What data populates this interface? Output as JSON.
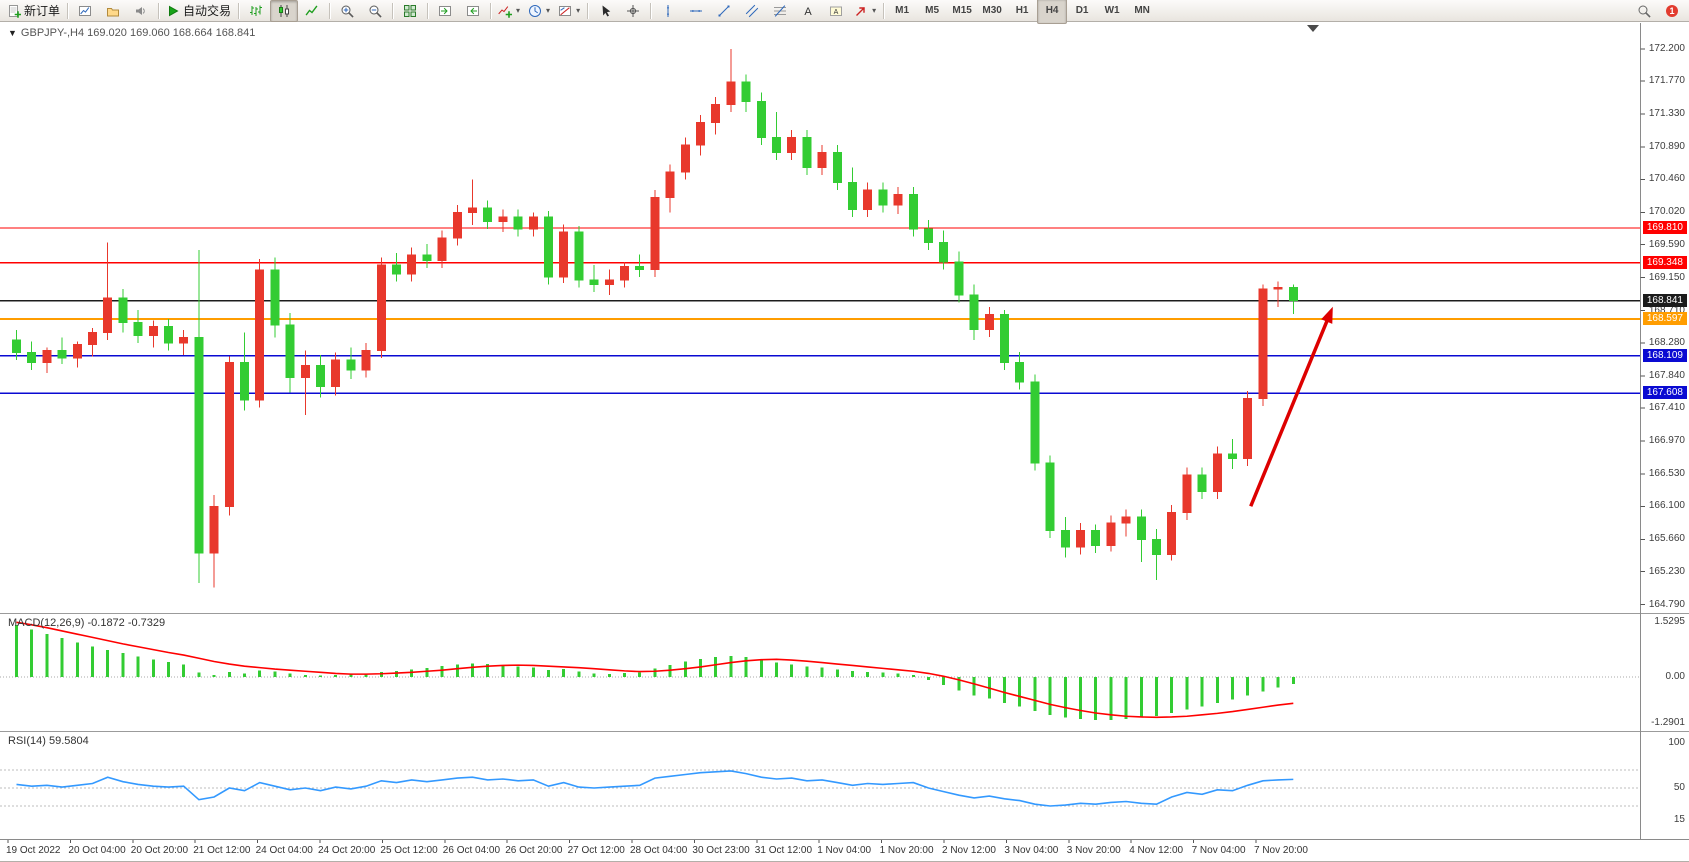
{
  "toolbar": {
    "groups": [
      [
        {
          "name": "new-order-button",
          "icon": "new-order-icon",
          "label": "新订单"
        }
      ],
      [
        {
          "name": "charts-button",
          "icon": "chart-window-icon"
        },
        {
          "name": "profiles-button",
          "icon": "profiles-icon"
        },
        {
          "name": "sound-alerts-button",
          "icon": "sound-icon"
        }
      ],
      [
        {
          "name": "autotrading-button",
          "icon": "autotrading-icon",
          "label": "自动交易"
        }
      ],
      [
        {
          "name": "bar-chart-button",
          "icon": "bar-chart-icon"
        },
        {
          "name": "candlestick-button",
          "icon": "candlestick-icon",
          "active": true
        },
        {
          "name": "line-chart-button",
          "icon": "line-chart-icon"
        }
      ],
      [
        {
          "name": "zoom-in-button",
          "icon": "zoom-in-icon"
        },
        {
          "name": "zoom-out-button",
          "icon": "zoom-out-icon"
        }
      ],
      [
        {
          "name": "tile-windows-button",
          "icon": "tile-windows-icon"
        }
      ],
      [
        {
          "name": "auto-scroll-button",
          "icon": "auto-scroll-icon"
        },
        {
          "name": "chart-shift-button",
          "icon": "chart-shift-icon"
        }
      ],
      [
        {
          "name": "indicators-button",
          "icon": "indicator-plus-icon",
          "dropdown": true
        },
        {
          "name": "periods-button",
          "icon": "clock-icon",
          "dropdown": true
        },
        {
          "name": "templates-button",
          "icon": "template-icon",
          "dropdown": true
        }
      ],
      [
        {
          "name": "cursor-button",
          "icon": "cursor-icon"
        },
        {
          "name": "crosshair-button",
          "icon": "crosshair-icon"
        }
      ],
      [
        {
          "name": "vertical-line-button",
          "icon": "vertical-line-icon"
        },
        {
          "name": "horizontal-line-button",
          "icon": "horizontal-line-icon"
        },
        {
          "name": "trendline-button",
          "icon": "trendline-icon"
        },
        {
          "name": "channel-button",
          "icon": "channel-icon"
        },
        {
          "name": "fibonacci-button",
          "icon": "fibonacci-icon"
        },
        {
          "name": "text-button",
          "icon": "text-icon"
        },
        {
          "name": "label-button",
          "icon": "text-label-icon"
        },
        {
          "name": "arrows-button",
          "icon": "arrow-tool-icon",
          "dropdown": true
        }
      ]
    ],
    "timeframes": [
      "M1",
      "M5",
      "M15",
      "M30",
      "H1",
      "H4",
      "D1",
      "W1",
      "MN"
    ],
    "active_timeframe": "H4",
    "right": [
      {
        "name": "search-button",
        "icon": "search-icon"
      },
      {
        "name": "notifications-button",
        "icon": "notification-icon",
        "badge": "1"
      }
    ]
  },
  "chart": {
    "collapse_icon": "▼",
    "title": "GBPJPY-,H4 169.020 169.060 168.664 168.841",
    "symbol": "GBPJPY-",
    "period": "H4",
    "open": "169.020",
    "high": "169.060",
    "low": "168.664",
    "close": "168.841"
  },
  "price_scale": [
    "172.200",
    "171.770",
    "171.330",
    "170.890",
    "170.460",
    "170.020",
    "169.590",
    "169.150",
    "168.710",
    "168.280",
    "167.840",
    "167.410",
    "166.970",
    "166.530",
    "166.100",
    "165.660",
    "165.230",
    "164.790"
  ],
  "hlines": [
    {
      "price": 169.81,
      "label": "169.810",
      "color": "#ff0000",
      "width": 1.4
    },
    {
      "price": 169.348,
      "label": "169.348",
      "color": "#ff0000",
      "width": 1.4
    },
    {
      "price": 168.841,
      "label": "168.841",
      "color": "#1c1c1c",
      "width": 1.2
    },
    {
      "price": 168.597,
      "label": "168.597",
      "color": "#ff9d00",
      "width": 2
    },
    {
      "price": 168.109,
      "label": "168.109",
      "color": "#0a0ad2",
      "width": 1.6
    },
    {
      "price": 167.608,
      "label": "167.608",
      "color": "#0a0ad2",
      "width": 1.6
    }
  ],
  "time_axis": [
    "19 Oct 2022",
    "20 Oct 04:00",
    "20 Oct 20:00",
    "21 Oct 12:00",
    "24 Oct 04:00",
    "24 Oct 20:00",
    "25 Oct 12:00",
    "26 Oct 04:00",
    "26 Oct 20:00",
    "27 Oct 12:00",
    "28 Oct 04:00",
    "30 Oct 23:00",
    "31 Oct 12:00",
    "1 Nov 04:00",
    "1 Nov 20:00",
    "2 Nov 12:00",
    "3 Nov 04:00",
    "3 Nov 20:00",
    "4 Nov 12:00",
    "7 Nov 04:00",
    "7 Nov 20:00"
  ],
  "indicators": {
    "macd": {
      "label": "MACD(12,26,9)",
      "values": "-0.1872 -0.7329",
      "scale": [
        "1.5295",
        "0.00",
        "-1.2901"
      ]
    },
    "rsi": {
      "label": "RSI(14)",
      "value": "59.5804",
      "scale": [
        "100",
        "50",
        "15"
      ],
      "levels": [
        70,
        50,
        30
      ]
    }
  },
  "annotations": {
    "arrow": {
      "from_bar": 81.2,
      "from_price": 166.1,
      "to_bar": 86.6,
      "to_price": 168.76,
      "color": "#dd0000"
    }
  },
  "chart_data": {
    "type": "candlestick",
    "symbol": "GBPJPY-",
    "timeframe": "H4",
    "ylim": [
      164.7,
      172.53
    ],
    "colors": {
      "bull": "#e8382c",
      "bear": "#33cc33",
      "macd_histogram": "#33cc33",
      "macd_signal": "#ff0000",
      "rsi_line": "#3399ff"
    },
    "candles": [
      [
        168.32,
        168.45,
        168.05,
        168.15
      ],
      [
        168.15,
        168.3,
        167.92,
        168.02
      ],
      [
        168.02,
        168.22,
        167.88,
        168.18
      ],
      [
        168.18,
        168.35,
        168.0,
        168.08
      ],
      [
        168.08,
        168.3,
        167.95,
        168.26
      ],
      [
        168.26,
        168.48,
        168.1,
        168.42
      ],
      [
        168.42,
        169.62,
        168.32,
        168.88
      ],
      [
        168.88,
        169.0,
        168.42,
        168.55
      ],
      [
        168.55,
        168.72,
        168.28,
        168.38
      ],
      [
        168.38,
        168.58,
        168.22,
        168.5
      ],
      [
        168.5,
        168.6,
        168.18,
        168.28
      ],
      [
        168.28,
        168.45,
        168.12,
        168.35
      ],
      [
        168.35,
        169.52,
        165.08,
        165.48
      ],
      [
        165.48,
        166.25,
        165.02,
        166.1
      ],
      [
        166.1,
        168.1,
        165.98,
        168.02
      ],
      [
        168.02,
        168.42,
        167.38,
        167.52
      ],
      [
        167.52,
        169.4,
        167.42,
        169.25
      ],
      [
        169.25,
        169.42,
        168.35,
        168.52
      ],
      [
        168.52,
        168.68,
        167.62,
        167.82
      ],
      [
        167.82,
        168.18,
        167.32,
        167.98
      ],
      [
        167.98,
        168.12,
        167.55,
        167.7
      ],
      [
        167.7,
        168.15,
        167.58,
        168.05
      ],
      [
        168.05,
        168.22,
        167.8,
        167.92
      ],
      [
        167.92,
        168.28,
        167.82,
        168.18
      ],
      [
        168.18,
        169.42,
        168.08,
        169.32
      ],
      [
        169.32,
        169.48,
        169.1,
        169.2
      ],
      [
        169.2,
        169.55,
        169.1,
        169.45
      ],
      [
        169.45,
        169.6,
        169.28,
        169.38
      ],
      [
        169.38,
        169.78,
        169.28,
        169.68
      ],
      [
        169.68,
        170.12,
        169.58,
        170.02
      ],
      [
        170.02,
        170.46,
        169.85,
        170.08
      ],
      [
        170.08,
        170.18,
        169.8,
        169.9
      ],
      [
        169.9,
        170.06,
        169.76,
        169.96
      ],
      [
        169.96,
        170.06,
        169.7,
        169.8
      ],
      [
        169.8,
        170.02,
        169.7,
        169.96
      ],
      [
        169.96,
        170.04,
        169.06,
        169.16
      ],
      [
        169.16,
        169.86,
        169.08,
        169.76
      ],
      [
        169.76,
        169.84,
        169.02,
        169.12
      ],
      [
        169.12,
        169.32,
        168.96,
        169.06
      ],
      [
        169.06,
        169.26,
        168.92,
        169.12
      ],
      [
        169.12,
        169.36,
        169.02,
        169.3
      ],
      [
        169.3,
        169.46,
        169.16,
        169.26
      ],
      [
        169.26,
        170.32,
        169.16,
        170.22
      ],
      [
        170.22,
        170.66,
        170.02,
        170.56
      ],
      [
        170.56,
        171.02,
        170.46,
        170.92
      ],
      [
        170.92,
        171.32,
        170.78,
        171.22
      ],
      [
        171.22,
        171.56,
        171.06,
        171.46
      ],
      [
        171.46,
        172.2,
        171.36,
        171.76
      ],
      [
        171.76,
        171.86,
        171.36,
        171.5
      ],
      [
        171.5,
        171.62,
        170.92,
        171.02
      ],
      [
        171.02,
        171.36,
        170.72,
        170.82
      ],
      [
        170.82,
        171.12,
        170.72,
        171.02
      ],
      [
        171.02,
        171.12,
        170.52,
        170.62
      ],
      [
        170.62,
        170.92,
        170.52,
        170.82
      ],
      [
        170.82,
        170.92,
        170.32,
        170.42
      ],
      [
        170.42,
        170.62,
        169.96,
        170.06
      ],
      [
        170.06,
        170.42,
        169.96,
        170.32
      ],
      [
        170.32,
        170.42,
        170.02,
        170.12
      ],
      [
        170.12,
        170.36,
        170.0,
        170.26
      ],
      [
        170.26,
        170.36,
        169.7,
        169.8
      ],
      [
        169.8,
        169.92,
        169.52,
        169.62
      ],
      [
        169.62,
        169.78,
        169.26,
        169.36
      ],
      [
        169.36,
        169.5,
        168.82,
        168.92
      ],
      [
        168.92,
        169.06,
        168.32,
        168.46
      ],
      [
        168.46,
        168.76,
        168.36,
        168.66
      ],
      [
        168.66,
        168.72,
        167.92,
        168.02
      ],
      [
        168.02,
        168.16,
        167.66,
        167.76
      ],
      [
        167.76,
        167.86,
        166.58,
        166.68
      ],
      [
        166.68,
        166.78,
        165.68,
        165.78
      ],
      [
        165.78,
        165.96,
        165.42,
        165.56
      ],
      [
        165.56,
        165.88,
        165.46,
        165.78
      ],
      [
        165.78,
        165.86,
        165.48,
        165.58
      ],
      [
        165.58,
        165.98,
        165.5,
        165.88
      ],
      [
        165.88,
        166.06,
        165.7,
        165.96
      ],
      [
        165.96,
        166.06,
        165.36,
        165.66
      ],
      [
        165.66,
        165.8,
        165.12,
        165.46
      ],
      [
        165.46,
        166.12,
        165.38,
        166.02
      ],
      [
        166.02,
        166.62,
        165.92,
        166.52
      ],
      [
        166.52,
        166.62,
        166.2,
        166.3
      ],
      [
        166.3,
        166.9,
        166.2,
        166.8
      ],
      [
        166.8,
        167.0,
        166.6,
        166.74
      ],
      [
        166.74,
        167.64,
        166.64,
        167.54
      ],
      [
        167.54,
        169.06,
        167.44,
        169.0
      ],
      [
        169.0,
        169.1,
        168.76,
        169.02
      ],
      [
        169.02,
        169.06,
        168.664,
        168.841
      ]
    ],
    "macd_histogram": [
      1.45,
      1.32,
      1.2,
      1.08,
      0.96,
      0.85,
      0.75,
      0.66,
      0.57,
      0.49,
      0.42,
      0.35,
      0.12,
      0.06,
      0.14,
      0.1,
      0.18,
      0.15,
      0.1,
      0.06,
      0.04,
      0.05,
      0.07,
      0.09,
      0.14,
      0.17,
      0.21,
      0.25,
      0.3,
      0.35,
      0.38,
      0.36,
      0.33,
      0.29,
      0.27,
      0.2,
      0.22,
      0.15,
      0.1,
      0.09,
      0.11,
      0.13,
      0.24,
      0.34,
      0.43,
      0.5,
      0.55,
      0.58,
      0.55,
      0.48,
      0.4,
      0.35,
      0.29,
      0.26,
      0.21,
      0.16,
      0.14,
      0.12,
      0.1,
      0.05,
      -0.08,
      -0.22,
      -0.38,
      -0.52,
      -0.6,
      -0.72,
      -0.82,
      -0.95,
      -1.05,
      -1.12,
      -1.17,
      -1.2,
      -1.19,
      -1.16,
      -1.12,
      -1.08,
      -1.0,
      -0.9,
      -0.82,
      -0.72,
      -0.63,
      -0.52,
      -0.4,
      -0.29,
      -0.19
    ],
    "macd_signal": [
      1.52,
      1.45,
      1.37,
      1.28,
      1.19,
      1.1,
      1.01,
      0.92,
      0.84,
      0.76,
      0.68,
      0.61,
      0.52,
      0.43,
      0.36,
      0.3,
      0.26,
      0.22,
      0.19,
      0.16,
      0.13,
      0.1,
      0.08,
      0.08,
      0.09,
      0.11,
      0.13,
      0.16,
      0.19,
      0.23,
      0.27,
      0.3,
      0.32,
      0.33,
      0.32,
      0.3,
      0.28,
      0.26,
      0.23,
      0.2,
      0.17,
      0.15,
      0.16,
      0.19,
      0.23,
      0.28,
      0.34,
      0.4,
      0.45,
      0.48,
      0.49,
      0.47,
      0.44,
      0.4,
      0.36,
      0.32,
      0.28,
      0.24,
      0.2,
      0.16,
      0.1,
      0.02,
      -0.08,
      -0.19,
      -0.31,
      -0.43,
      -0.54,
      -0.65,
      -0.76,
      -0.85,
      -0.93,
      -1.0,
      -1.05,
      -1.09,
      -1.11,
      -1.12,
      -1.11,
      -1.09,
      -1.05,
      -1.01,
      -0.96,
      -0.9,
      -0.84,
      -0.78,
      -0.73
    ],
    "rsi": [
      54,
      52,
      53,
      51,
      53,
      55,
      62,
      57,
      54,
      52,
      51,
      52,
      37,
      40,
      50,
      47,
      56,
      52,
      48,
      50,
      47,
      51,
      49,
      52,
      58,
      56,
      59,
      57,
      59,
      61,
      62,
      59,
      60,
      58,
      59,
      52,
      56,
      51,
      50,
      51,
      52,
      53,
      61,
      63,
      65,
      67,
      68,
      69,
      66,
      62,
      60,
      61,
      58,
      59,
      56,
      53,
      55,
      54,
      55,
      56,
      50,
      46,
      42,
      39,
      41,
      38,
      36,
      32,
      30,
      31,
      33,
      32,
      34,
      35,
      33,
      32,
      40,
      45,
      43,
      48,
      47,
      53,
      58,
      59,
      59.58
    ]
  }
}
